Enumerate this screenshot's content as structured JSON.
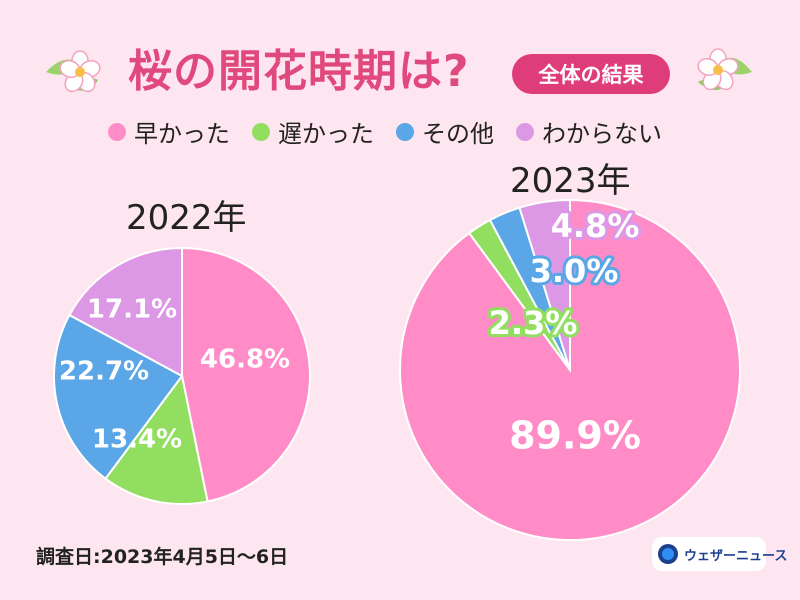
{
  "header": {
    "title": "桜の開花時期は?",
    "badge": "全体の結果"
  },
  "legend": [
    {
      "label": "早かった",
      "color": "#ff8cc6"
    },
    {
      "label": "遅かった",
      "color": "#92de61"
    },
    {
      "label": "その他",
      "color": "#5aa6e6"
    },
    {
      "label": "わからない",
      "color": "#dc98e5"
    }
  ],
  "footer": {
    "survey_date": "調査日:2023年4月5日〜6日",
    "brand": "ウェザーニュース"
  },
  "chart_data": [
    {
      "type": "pie",
      "title": "2022年",
      "categories": [
        "早かった",
        "遅かった",
        "その他",
        "わからない"
      ],
      "values": [
        46.8,
        13.4,
        22.7,
        17.1
      ],
      "value_labels": [
        "46.8%",
        "13.4%",
        "22.7%",
        "17.1%"
      ],
      "colors": [
        "#ff8cc6",
        "#92de61",
        "#5aa6e6",
        "#dc98e5"
      ],
      "start": "12 o'clock",
      "direction": "clockwise"
    },
    {
      "type": "pie",
      "title": "2023年",
      "categories": [
        "早かった",
        "遅かった",
        "その他",
        "わからない"
      ],
      "values": [
        89.9,
        2.3,
        3.0,
        4.8
      ],
      "value_labels": [
        "89.9%",
        "2.3%",
        "3.0%",
        "4.8%"
      ],
      "colors": [
        "#ff8cc6",
        "#92de61",
        "#5aa6e6",
        "#dc98e5"
      ],
      "start": "12 o'clock",
      "direction": "clockwise"
    }
  ]
}
